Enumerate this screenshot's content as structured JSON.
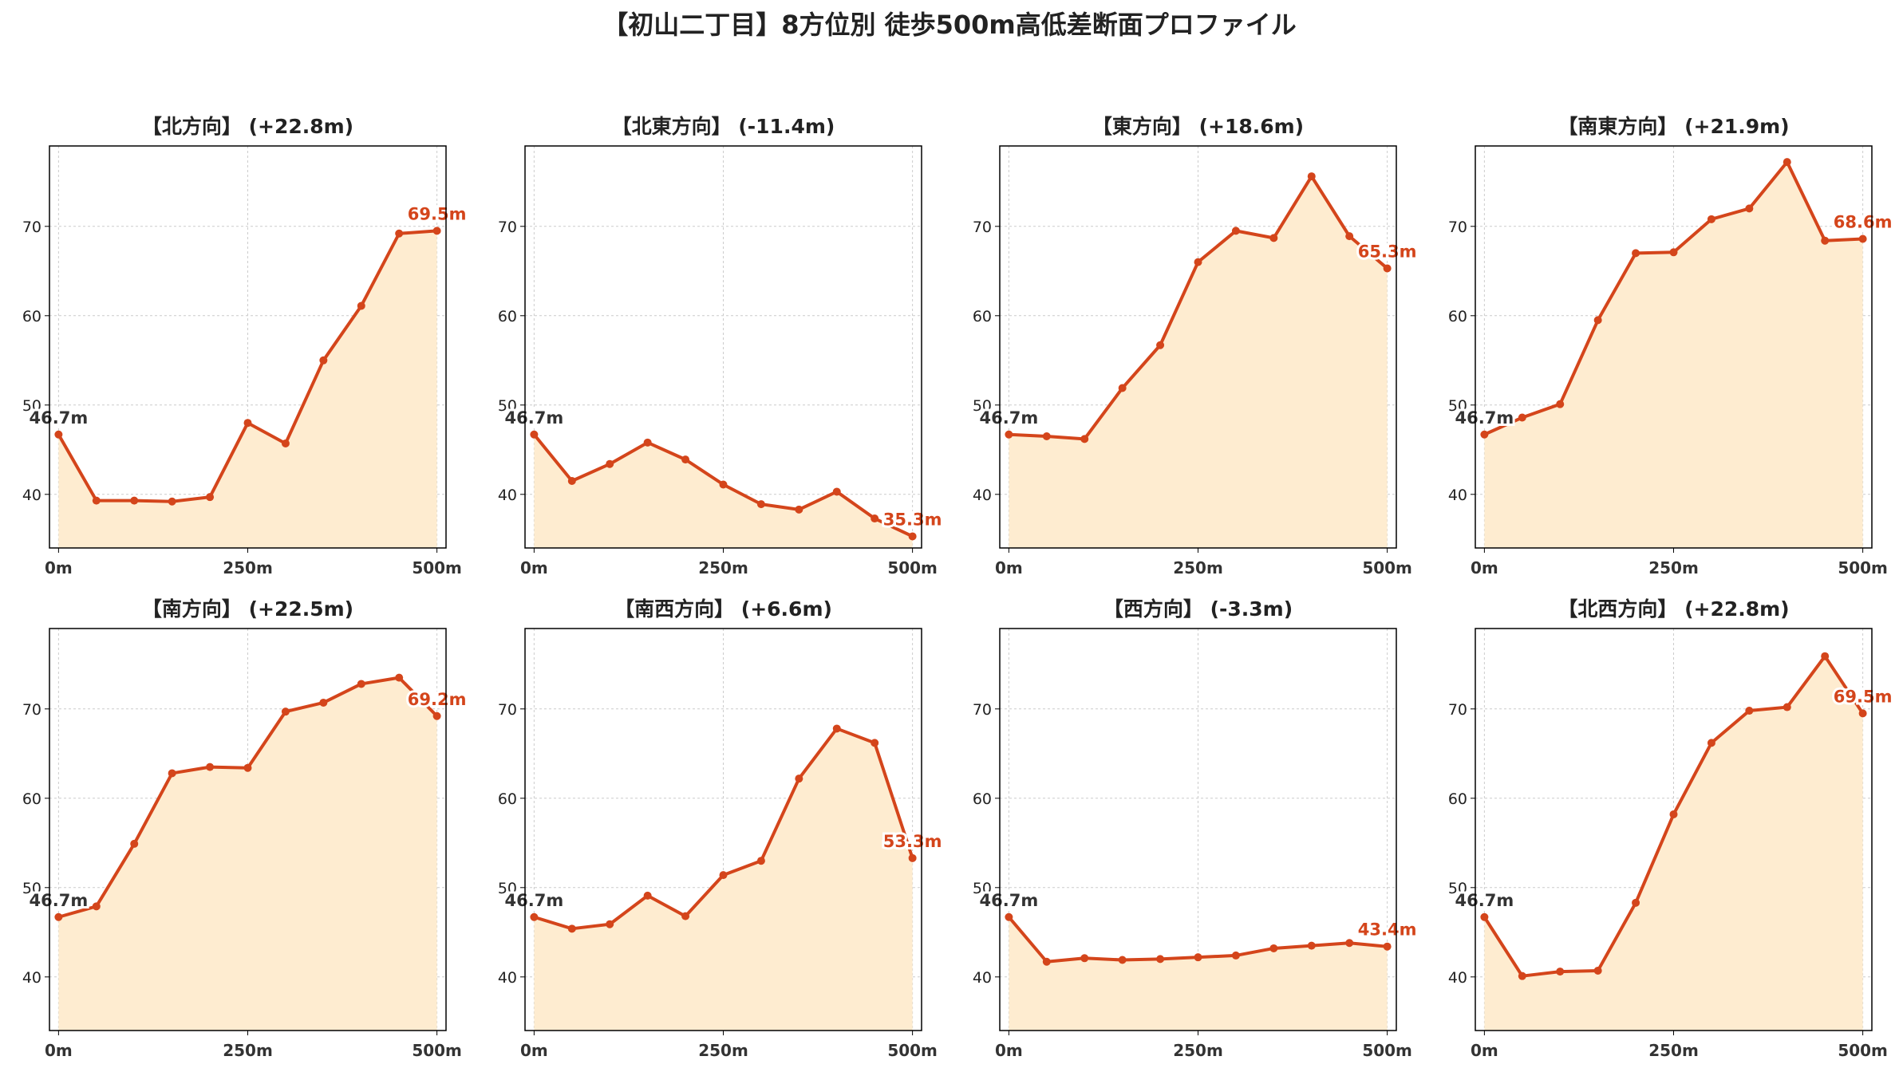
{
  "figure_title": "【初山二丁目】8方位別 徒歩500m高低差断面プロファイル",
  "colors": {
    "line": "#d4451b",
    "fill": "#feecd0",
    "start_label": "#333333",
    "end_label": "#d4451b",
    "grid": "#cccccc",
    "axis": "#000000",
    "background": "#ffffff"
  },
  "chart_data": [
    {
      "type": "area",
      "title": "【北方向】 (+22.8m)",
      "x": [
        0,
        50,
        100,
        150,
        200,
        250,
        300,
        350,
        400,
        450,
        500
      ],
      "values": [
        46.7,
        39.3,
        39.3,
        39.2,
        39.7,
        48.0,
        45.7,
        55.0,
        61.1,
        69.2,
        69.5
      ],
      "start_label": "46.7m",
      "end_label": "69.5m",
      "xticks": [
        "0m",
        "250m",
        "500m"
      ],
      "xtick_values": [
        0,
        250,
        500
      ],
      "yticks": [
        40,
        50,
        60,
        70
      ],
      "xlim": [
        -12,
        512
      ],
      "ylim": [
        34,
        79
      ],
      "grid": true
    },
    {
      "type": "area",
      "title": "【北東方向】 (-11.4m)",
      "x": [
        0,
        50,
        100,
        150,
        200,
        250,
        300,
        350,
        400,
        450,
        500
      ],
      "values": [
        46.7,
        41.5,
        43.4,
        45.8,
        43.9,
        41.1,
        38.9,
        38.3,
        40.3,
        37.3,
        35.3
      ],
      "start_label": "46.7m",
      "end_label": "35.3m",
      "xticks": [
        "0m",
        "250m",
        "500m"
      ],
      "xtick_values": [
        0,
        250,
        500
      ],
      "yticks": [
        40,
        50,
        60,
        70
      ],
      "xlim": [
        -12,
        512
      ],
      "ylim": [
        34,
        79
      ],
      "grid": true
    },
    {
      "type": "area",
      "title": "【東方向】 (+18.6m)",
      "x": [
        0,
        50,
        100,
        150,
        200,
        250,
        300,
        350,
        400,
        450,
        500
      ],
      "values": [
        46.7,
        46.5,
        46.2,
        51.9,
        56.7,
        66.0,
        69.5,
        68.7,
        75.6,
        68.9,
        65.3
      ],
      "start_label": "46.7m",
      "end_label": "65.3m",
      "xticks": [
        "0m",
        "250m",
        "500m"
      ],
      "xtick_values": [
        0,
        250,
        500
      ],
      "yticks": [
        40,
        50,
        60,
        70
      ],
      "xlim": [
        -12,
        512
      ],
      "ylim": [
        34,
        79
      ],
      "grid": true
    },
    {
      "type": "area",
      "title": "【南東方向】 (+21.9m)",
      "x": [
        0,
        50,
        100,
        150,
        200,
        250,
        300,
        350,
        400,
        450,
        500
      ],
      "values": [
        46.7,
        48.6,
        50.1,
        59.5,
        67.0,
        67.1,
        70.8,
        72.0,
        77.2,
        68.4,
        68.6
      ],
      "start_label": "46.7m",
      "end_label": "68.6m",
      "xticks": [
        "0m",
        "250m",
        "500m"
      ],
      "xtick_values": [
        0,
        250,
        500
      ],
      "yticks": [
        40,
        50,
        60,
        70
      ],
      "xlim": [
        -12,
        512
      ],
      "ylim": [
        34,
        79
      ],
      "grid": true
    },
    {
      "type": "area",
      "title": "【南方向】 (+22.5m)",
      "x": [
        0,
        50,
        100,
        150,
        200,
        250,
        300,
        350,
        400,
        450,
        500
      ],
      "values": [
        46.7,
        47.9,
        54.9,
        62.8,
        63.5,
        63.4,
        69.7,
        70.7,
        72.8,
        73.5,
        69.2
      ],
      "start_label": "46.7m",
      "end_label": "69.2m",
      "xticks": [
        "0m",
        "250m",
        "500m"
      ],
      "xtick_values": [
        0,
        250,
        500
      ],
      "yticks": [
        40,
        50,
        60,
        70
      ],
      "xlim": [
        -12,
        512
      ],
      "ylim": [
        34,
        79
      ],
      "grid": true
    },
    {
      "type": "area",
      "title": "【南西方向】 (+6.6m)",
      "x": [
        0,
        50,
        100,
        150,
        200,
        250,
        300,
        350,
        400,
        450,
        500
      ],
      "values": [
        46.7,
        45.4,
        45.9,
        49.1,
        46.8,
        51.4,
        53.0,
        62.2,
        67.8,
        66.2,
        53.3
      ],
      "start_label": "46.7m",
      "end_label": "53.3m",
      "xticks": [
        "0m",
        "250m",
        "500m"
      ],
      "xtick_values": [
        0,
        250,
        500
      ],
      "yticks": [
        40,
        50,
        60,
        70
      ],
      "xlim": [
        -12,
        512
      ],
      "ylim": [
        34,
        79
      ],
      "grid": true
    },
    {
      "type": "area",
      "title": "【西方向】 (-3.3m)",
      "x": [
        0,
        50,
        100,
        150,
        200,
        250,
        300,
        350,
        400,
        450,
        500
      ],
      "values": [
        46.7,
        41.7,
        42.1,
        41.9,
        42.0,
        42.2,
        42.4,
        43.2,
        43.5,
        43.8,
        43.4
      ],
      "start_label": "46.7m",
      "end_label": "43.4m",
      "xticks": [
        "0m",
        "250m",
        "500m"
      ],
      "xtick_values": [
        0,
        250,
        500
      ],
      "yticks": [
        40,
        50,
        60,
        70
      ],
      "xlim": [
        -12,
        512
      ],
      "ylim": [
        34,
        79
      ],
      "grid": true
    },
    {
      "type": "area",
      "title": "【北西方向】 (+22.8m)",
      "x": [
        0,
        50,
        100,
        150,
        200,
        250,
        300,
        350,
        400,
        450,
        500
      ],
      "values": [
        46.7,
        40.1,
        40.6,
        40.7,
        48.3,
        58.2,
        66.2,
        69.8,
        70.2,
        75.9,
        69.5
      ],
      "start_label": "46.7m",
      "end_label": "69.5m",
      "xticks": [
        "0m",
        "250m",
        "500m"
      ],
      "xtick_values": [
        0,
        250,
        500
      ],
      "yticks": [
        40,
        50,
        60,
        70
      ],
      "xlim": [
        -12,
        512
      ],
      "ylim": [
        34,
        79
      ],
      "grid": true
    }
  ]
}
